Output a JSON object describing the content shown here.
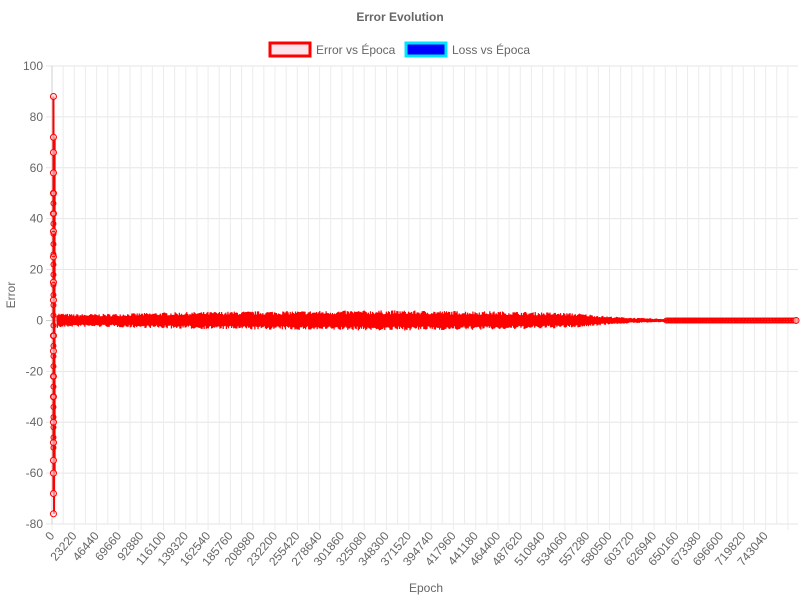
{
  "chart_data": {
    "type": "line",
    "title": "Error Evolution",
    "xlabel": "Epoch",
    "ylabel": "Error",
    "ylim": [
      -80,
      100
    ],
    "yticks": [
      100,
      80,
      60,
      40,
      20,
      0,
      -20,
      -40,
      -60,
      -80
    ],
    "xlim": [
      0,
      765000
    ],
    "xtick_labels": [
      "0",
      "23220",
      "46440",
      "69660",
      "92880",
      "116100",
      "139320",
      "162540",
      "185760",
      "208980",
      "232200",
      "255420",
      "278640",
      "301860",
      "325080",
      "348300",
      "371520",
      "394740",
      "417960",
      "441180",
      "464400",
      "487620",
      "510840",
      "534060",
      "557280",
      "580500",
      "603720",
      "626940",
      "650160",
      "673380",
      "696600",
      "719820",
      "743040"
    ],
    "grid": true,
    "legend_position": "top",
    "series": [
      {
        "name": "Error vs Época",
        "color": "#ff0000",
        "fill": "#fce4ec",
        "spikes": [
          88,
          -76,
          72,
          -68,
          66,
          -60,
          58,
          -55,
          50,
          -48,
          42,
          -40,
          35,
          -30,
          25,
          -22,
          15,
          -12,
          8,
          -6
        ],
        "envelope": [
          [
            5000,
            3.0
          ],
          [
            20000,
            2.5
          ],
          [
            60000,
            2.6
          ],
          [
            120000,
            3.2
          ],
          [
            200000,
            3.6
          ],
          [
            280000,
            3.8
          ],
          [
            340000,
            4.0
          ],
          [
            400000,
            3.8
          ],
          [
            460000,
            3.6
          ],
          [
            510000,
            3.2
          ],
          [
            540000,
            2.8
          ],
          [
            570000,
            1.6
          ],
          [
            600000,
            1.0
          ],
          [
            640000,
            0.5
          ],
          [
            680000,
            0.25
          ],
          [
            760000,
            0.15
          ]
        ],
        "last_point": [
          763000,
          0
        ]
      },
      {
        "name": "Loss vs Época",
        "color": "#00e5ff",
        "fill": "#0000ff"
      }
    ]
  }
}
